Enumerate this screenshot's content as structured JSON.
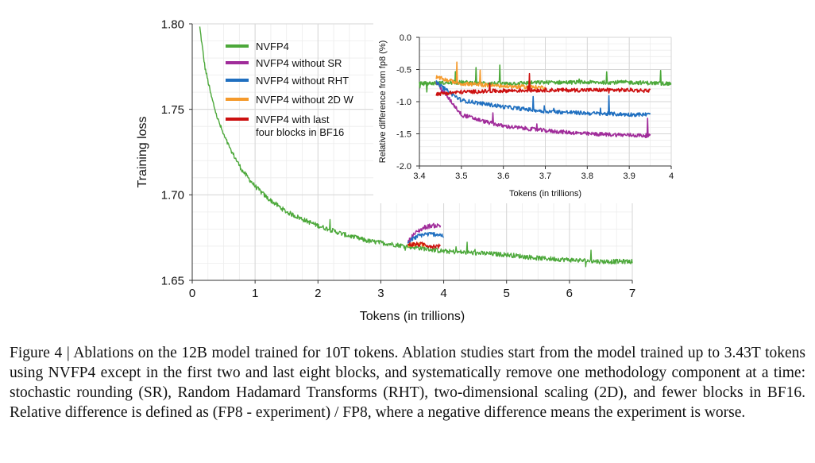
{
  "chart_data": [
    {
      "type": "line",
      "title": "",
      "xlabel": "Tokens (in trillions)",
      "ylabel": "Training loss",
      "xlim": [
        0,
        7
      ],
      "ylim": [
        1.65,
        1.8
      ],
      "xticks": [
        "0",
        "1",
        "2",
        "3",
        "4",
        "5",
        "6",
        "7"
      ],
      "yticks": [
        "1.65",
        "1.70",
        "1.75",
        "1.80"
      ],
      "grid": true,
      "legend": "top-left",
      "series": [
        {
          "name": "NVFP4",
          "color": "#4ca83a",
          "x": [
            0.12,
            0.2,
            0.3,
            0.4,
            0.5,
            0.6,
            0.8,
            1.0,
            1.2,
            1.5,
            1.8,
            2.0,
            2.4,
            2.8,
            3.2,
            3.6,
            4.0,
            4.5,
            5.0,
            5.5,
            6.0,
            6.5,
            7.0
          ],
          "y": [
            1.798,
            1.775,
            1.758,
            1.745,
            1.735,
            1.727,
            1.714,
            1.705,
            1.698,
            1.69,
            1.685,
            1.682,
            1.677,
            1.673,
            1.671,
            1.669,
            1.667,
            1.666,
            1.665,
            1.663,
            1.662,
            1.661,
            1.661
          ]
        },
        {
          "name": "NVFP4 without SR",
          "color": "#a02c9a",
          "x": [
            3.43,
            3.5,
            3.6,
            3.7,
            3.8,
            3.9,
            3.95
          ],
          "y": [
            1.672,
            1.676,
            1.679,
            1.681,
            1.682,
            1.682,
            1.682
          ]
        },
        {
          "name": "NVFP4 without RHT",
          "color": "#1f6fc0",
          "x": [
            3.43,
            3.5,
            3.6,
            3.7,
            3.8,
            3.9,
            4.0
          ],
          "y": [
            1.672,
            1.674,
            1.676,
            1.677,
            1.677,
            1.677,
            1.676
          ]
        },
        {
          "name": "NVFP4 without  2D W",
          "color": "#f59a2c",
          "x": [
            3.43,
            3.5,
            3.6,
            3.7
          ],
          "y": [
            1.67,
            1.671,
            1.671,
            1.671
          ]
        },
        {
          "name": "NVFP4 with last\nfour blocks in BF16",
          "color": "#cc1010",
          "x": [
            3.43,
            3.5,
            3.6,
            3.7,
            3.8,
            3.9,
            3.95
          ],
          "y": [
            1.671,
            1.671,
            1.671,
            1.671,
            1.67,
            1.67,
            1.67
          ]
        }
      ]
    },
    {
      "type": "line",
      "title": "",
      "xlabel": "Tokens (in trillions)",
      "ylabel": "Relative difference from fp8 (%)",
      "xlim": [
        3.4,
        4.0
      ],
      "ylim": [
        -2.0,
        0.0
      ],
      "xticks": [
        "3.4",
        "3.5",
        "3.6",
        "3.7",
        "3.8",
        "3.9",
        "4"
      ],
      "yticks": [
        "0.0",
        "-0.5",
        "-1.0",
        "-1.5",
        "-2.0"
      ],
      "grid": true,
      "series": [
        {
          "name": "NVFP4",
          "color": "#4ca83a",
          "x": [
            3.4,
            3.5,
            3.6,
            3.7,
            3.8,
            3.9,
            4.0
          ],
          "y": [
            -0.72,
            -0.7,
            -0.72,
            -0.7,
            -0.7,
            -0.7,
            -0.72
          ]
        },
        {
          "name": "NVFP4 without SR",
          "color": "#a02c9a",
          "x": [
            3.44,
            3.47,
            3.5,
            3.55,
            3.6,
            3.7,
            3.8,
            3.9,
            3.95
          ],
          "y": [
            -0.7,
            -0.95,
            -1.2,
            -1.3,
            -1.38,
            -1.45,
            -1.5,
            -1.52,
            -1.53
          ]
        },
        {
          "name": "NVFP4 without RHT",
          "color": "#1f6fc0",
          "x": [
            3.44,
            3.47,
            3.5,
            3.6,
            3.7,
            3.8,
            3.9,
            3.95
          ],
          "y": [
            -0.7,
            -0.85,
            -0.98,
            -1.08,
            -1.15,
            -1.18,
            -1.2,
            -1.2
          ]
        },
        {
          "name": "NVFP4 without  2D W",
          "color": "#f59a2c",
          "x": [
            3.44,
            3.5,
            3.6,
            3.7
          ],
          "y": [
            -0.62,
            -0.72,
            -0.76,
            -0.78
          ]
        },
        {
          "name": "NVFP4 with last\nfour blocks in BF16",
          "color": "#cc1010",
          "x": [
            3.44,
            3.5,
            3.6,
            3.7,
            3.8,
            3.9,
            3.95
          ],
          "y": [
            -0.88,
            -0.85,
            -0.83,
            -0.82,
            -0.82,
            -0.82,
            -0.83
          ]
        }
      ]
    }
  ],
  "caption": "Figure 4 | Ablations on the 12B model trained for 10T tokens. Ablation studies start from the model trained up to 3.43T tokens using NVFP4 except in the first two and last eight blocks, and systematically remove one methodology component at a time: stochastic rounding (SR), Random Hadamard Transforms (RHT), two-dimensional scaling (2D), and fewer blocks in BF16. Relative difference is defined as (FP8 - experiment) / FP8, where a negative difference means the experiment is worse."
}
